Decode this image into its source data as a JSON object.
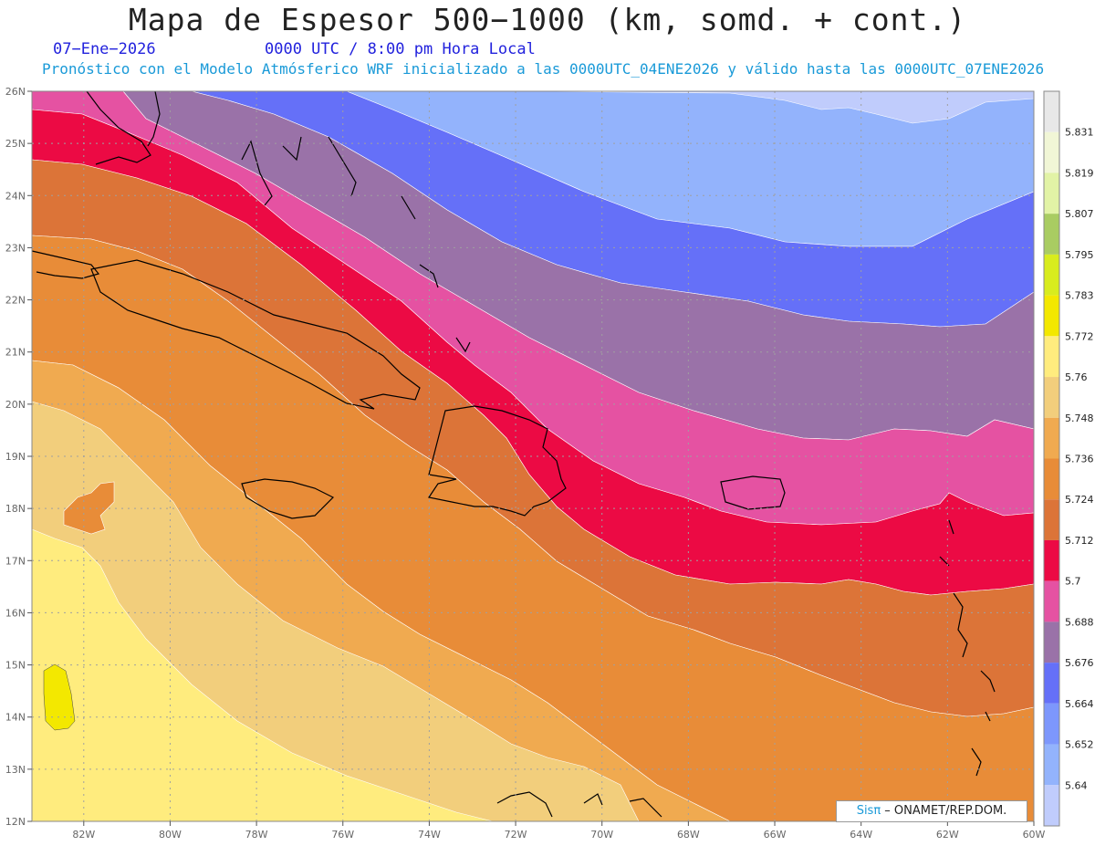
{
  "header": {
    "title": "Mapa de Espesor 500−1000 (km, somd. + cont.)",
    "date": "07−Ene−2026",
    "time": "0000 UTC / 8:00 pm Hora Local",
    "info": "Pronóstico con el Modelo Atmósferico WRF inicializado a las 0000UTC_04ENE2026 y válido hasta las  0000UTC_07ENE2026"
  },
  "map": {
    "lon_labels": [
      "82W",
      "80W",
      "78W",
      "76W",
      "74W",
      "72W",
      "70W",
      "68W",
      "66W",
      "64W",
      "62W",
      "60W"
    ],
    "lat_labels": [
      "26N",
      "25N",
      "24N",
      "23N",
      "22N",
      "21N",
      "20N",
      "19N",
      "18N",
      "17N",
      "16N",
      "15N",
      "14N",
      "13N",
      "12N"
    ],
    "lon_range": [
      -83.2,
      -60
    ],
    "lat_range": [
      12,
      26
    ]
  },
  "colorbar": {
    "levels": [
      "5.831",
      "5.819",
      "5.807",
      "5.795",
      "5.783",
      "5.772",
      "5.76",
      "5.748",
      "5.736",
      "5.724",
      "5.712",
      "5.7",
      "5.688",
      "5.676",
      "5.664",
      "5.652",
      "5.64"
    ],
    "colors": [
      "#e8e8e8",
      "#f1f6d6",
      "#e2f3a6",
      "#a9cc62",
      "#d8ec1e",
      "#f3e800",
      "#ffec7e",
      "#f2ce7c",
      "#f0aa50",
      "#e88c38",
      "#dc7438",
      "#ec0a44",
      "#e552a2",
      "#9a72a8",
      "#6570f8",
      "#7d97fc",
      "#93b3fc",
      "#c0ccfc"
    ]
  },
  "credit": {
    "brand": "Sisπ",
    "text": " – ONAMET/REP.DOM."
  }
}
